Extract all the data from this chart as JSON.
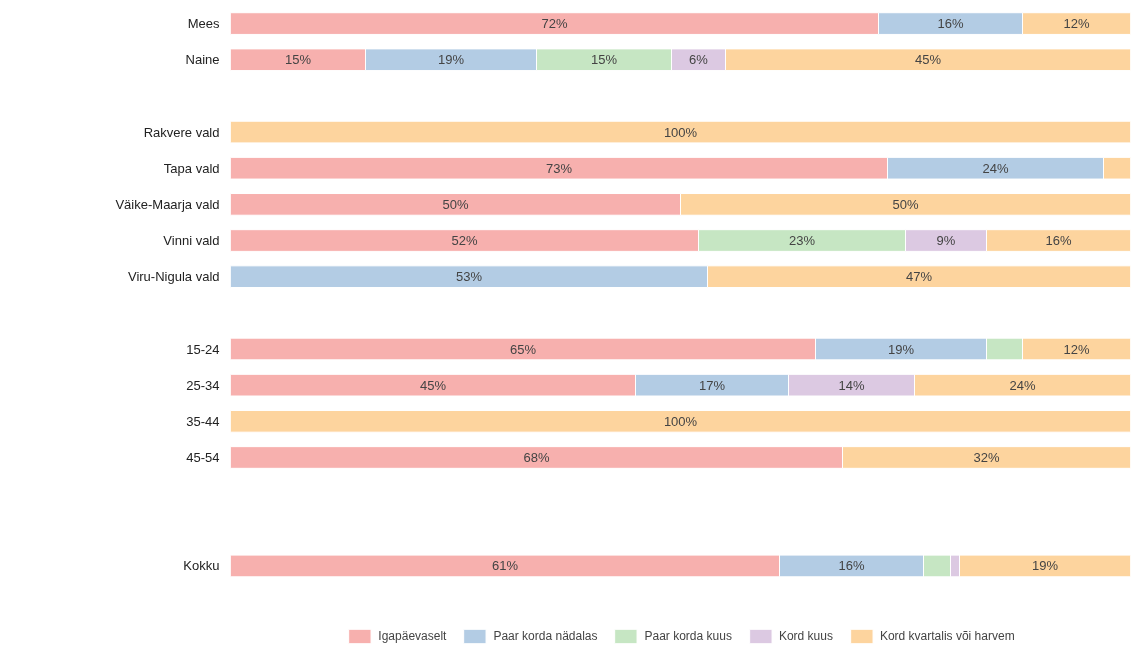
{
  "chart_data": {
    "type": "bar",
    "orientation": "horizontal",
    "stacked": true,
    "categories": [
      "Mees",
      "Naine",
      null,
      "Rakvere vald",
      "Tapa vald",
      "Väike-Maarja vald",
      "Vinni vald",
      "Viru-Nigula vald",
      null,
      "15-24",
      "25-34",
      "35-44",
      "45-54",
      null,
      null,
      "Kokku"
    ],
    "xlim": [
      0,
      100
    ],
    "tick_labels": "y",
    "grid": false,
    "legend": "bottom",
    "series": [
      {
        "name": "Igapäevaselt",
        "color": "#f7b0ae",
        "values": [
          72,
          15,
          null,
          null,
          73,
          50,
          52,
          null,
          null,
          65,
          45,
          null,
          68,
          null,
          null,
          61
        ],
        "value_labels": [
          "72%",
          "15%",
          null,
          null,
          "73%",
          "50%",
          "52%",
          null,
          null,
          "65%",
          "45%",
          null,
          "68%",
          null,
          null,
          "61%"
        ]
      },
      {
        "name": "Paar korda nädalas",
        "color": "#b3cce4",
        "values": [
          16,
          19,
          null,
          null,
          24,
          null,
          null,
          53,
          null,
          19,
          17,
          null,
          null,
          null,
          null,
          16
        ],
        "value_labels": [
          "16%",
          "19%",
          null,
          null,
          "24%",
          null,
          null,
          "53%",
          null,
          "19%",
          "17%",
          null,
          null,
          null,
          null,
          "16%"
        ]
      },
      {
        "name": "Paar korda kuus",
        "color": "#c6e6c3",
        "values": [
          null,
          15,
          null,
          null,
          null,
          null,
          23,
          null,
          null,
          4,
          null,
          null,
          null,
          null,
          null,
          3
        ],
        "value_labels": [
          null,
          "15%",
          null,
          null,
          null,
          null,
          "23%",
          null,
          null,
          null,
          null,
          null,
          null,
          null,
          null,
          null
        ]
      },
      {
        "name": "Kord kuus",
        "color": "#dcc9e2",
        "values": [
          null,
          6,
          null,
          null,
          null,
          null,
          9,
          null,
          null,
          null,
          14,
          null,
          null,
          null,
          null,
          1
        ],
        "value_labels": [
          null,
          "6%",
          null,
          null,
          null,
          null,
          "9%",
          null,
          null,
          null,
          "14%",
          null,
          null,
          null,
          null,
          null
        ]
      },
      {
        "name": "Kord kvartalis või harvem",
        "color": "#fdd49e",
        "values": [
          12,
          45,
          null,
          100,
          3,
          50,
          16,
          47,
          null,
          12,
          24,
          100,
          32,
          null,
          null,
          19
        ],
        "value_labels": [
          "12%",
          "45%",
          null,
          "100%",
          null,
          "50%",
          "16%",
          "47%",
          null,
          "12%",
          "24%",
          "100%",
          "32%",
          null,
          null,
          "19%"
        ]
      }
    ]
  }
}
